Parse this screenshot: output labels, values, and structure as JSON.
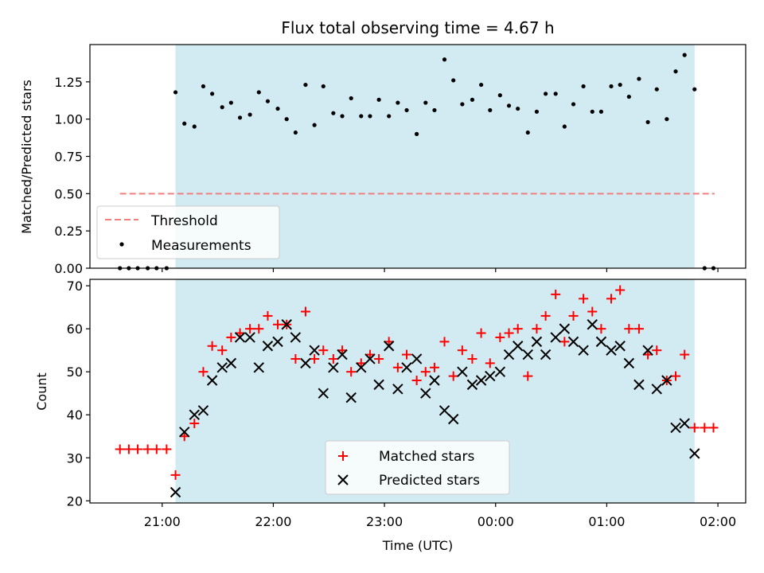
{
  "chart_data": {
    "title": "Flux total observing time = 4.67 h",
    "xlabel": "Time (UTC)",
    "x_unit": "hours after 21:00 UTC (x axis labeled with clock times)",
    "xlim": [
      -0.65,
      5.25
    ],
    "xticks": [
      {
        "value": 0,
        "label": "21:00"
      },
      {
        "value": 1,
        "label": "22:00"
      },
      {
        "value": 2,
        "label": "23:00"
      },
      {
        "value": 3,
        "label": "00:00"
      },
      {
        "value": 4,
        "label": "01:00"
      },
      {
        "value": 5,
        "label": "02:00"
      }
    ],
    "observing_window": {
      "start": 0.12,
      "end": 4.79,
      "color": "#d2eaf1"
    },
    "panels": [
      {
        "name": "ratio",
        "type": "scatter",
        "ylabel": "Matched/Predicted stars",
        "ylim": [
          0,
          1.5
        ],
        "yticks": [
          "0.00",
          "0.25",
          "0.50",
          "0.75",
          "1.00",
          "1.25"
        ],
        "threshold": {
          "name": "Threshold",
          "value": 0.5,
          "x_range": [
            -0.38,
            4.97
          ],
          "color": "#f08080"
        },
        "legend": {
          "position": "lower-left",
          "entries": [
            "Threshold",
            "Measurements"
          ]
        },
        "series": [
          {
            "name": "Measurements",
            "color": "#000000",
            "marker": "dot",
            "x": [
              -0.38,
              -0.3,
              -0.22,
              -0.13,
              -0.05,
              0.04,
              0.12,
              0.2,
              0.29,
              0.37,
              0.45,
              0.54,
              0.62,
              0.7,
              0.79,
              0.87,
              0.95,
              1.04,
              1.12,
              1.2,
              1.29,
              1.37,
              1.45,
              1.54,
              1.62,
              1.7,
              1.79,
              1.87,
              1.95,
              2.04,
              2.12,
              2.2,
              2.29,
              2.37,
              2.45,
              2.54,
              2.62,
              2.7,
              2.79,
              2.87,
              2.95,
              3.04,
              3.12,
              3.2,
              3.29,
              3.37,
              3.45,
              3.54,
              3.62,
              3.7,
              3.79,
              3.87,
              3.95,
              4.04,
              4.12,
              4.2,
              4.29,
              4.37,
              4.45,
              4.54,
              4.62,
              4.7,
              4.79,
              4.88,
              4.96
            ],
            "y": [
              0,
              0,
              0,
              0,
              0,
              0,
              1.18,
              0.97,
              0.95,
              1.22,
              1.17,
              1.08,
              1.11,
              1.01,
              1.03,
              1.18,
              1.12,
              1.07,
              1.0,
              0.91,
              1.23,
              0.96,
              1.22,
              1.04,
              1.02,
              1.14,
              1.02,
              1.02,
              1.13,
              1.02,
              1.11,
              1.06,
              0.9,
              1.11,
              1.06,
              1.4,
              1.26,
              1.1,
              1.13,
              1.23,
              1.06,
              1.16,
              1.09,
              1.07,
              0.91,
              1.05,
              1.17,
              1.17,
              0.95,
              1.1,
              1.22,
              1.05,
              1.05,
              1.22,
              1.23,
              1.15,
              1.27,
              0.98,
              1.2,
              1.0,
              1.32,
              1.43,
              1.2,
              0,
              0
            ]
          }
        ]
      },
      {
        "name": "count",
        "type": "scatter",
        "ylabel": "Count",
        "ylim": [
          19.5,
          71.5
        ],
        "yticks": [
          "20",
          "30",
          "40",
          "50",
          "60",
          "70"
        ],
        "legend": {
          "position": "lower-center",
          "entries": [
            "Matched stars",
            "Predicted stars"
          ]
        },
        "series": [
          {
            "name": "Matched stars",
            "color": "#ff0000",
            "marker": "plus",
            "x": [
              -0.38,
              -0.3,
              -0.22,
              -0.13,
              -0.05,
              0.04,
              0.12,
              0.2,
              0.29,
              0.37,
              0.45,
              0.54,
              0.62,
              0.7,
              0.79,
              0.87,
              0.95,
              1.04,
              1.12,
              1.2,
              1.29,
              1.37,
              1.45,
              1.54,
              1.62,
              1.7,
              1.79,
              1.87,
              1.95,
              2.04,
              2.12,
              2.2,
              2.29,
              2.37,
              2.45,
              2.54,
              2.62,
              2.7,
              2.79,
              2.87,
              2.95,
              3.04,
              3.12,
              3.2,
              3.29,
              3.37,
              3.45,
              3.54,
              3.62,
              3.7,
              3.79,
              3.87,
              3.95,
              4.04,
              4.12,
              4.2,
              4.29,
              4.37,
              4.45,
              4.54,
              4.62,
              4.7,
              4.79,
              4.88,
              4.96
            ],
            "y": [
              32,
              32,
              32,
              32,
              32,
              32,
              26,
              35,
              38,
              50,
              56,
              55,
              58,
              59,
              60,
              60,
              63,
              61,
              61,
              53,
              64,
              53,
              55,
              53,
              55,
              50,
              52,
              54,
              53,
              57,
              51,
              54,
              48,
              50,
              51,
              57,
              49,
              55,
              53,
              59,
              52,
              58,
              59,
              60,
              49,
              60,
              63,
              68,
              57,
              63,
              67,
              64,
              60,
              67,
              69,
              60,
              60,
              54,
              55,
              48,
              49,
              54,
              37,
              37,
              37
            ]
          },
          {
            "name": "Predicted stars",
            "color": "#000000",
            "marker": "x",
            "x": [
              0.12,
              0.2,
              0.29,
              0.37,
              0.45,
              0.54,
              0.62,
              0.7,
              0.79,
              0.87,
              0.95,
              1.04,
              1.12,
              1.2,
              1.29,
              1.37,
              1.45,
              1.54,
              1.62,
              1.7,
              1.79,
              1.87,
              1.95,
              2.04,
              2.12,
              2.2,
              2.29,
              2.37,
              2.45,
              2.54,
              2.62,
              2.7,
              2.79,
              2.87,
              2.95,
              3.04,
              3.12,
              3.2,
              3.29,
              3.37,
              3.45,
              3.54,
              3.62,
              3.7,
              3.79,
              3.87,
              3.95,
              4.04,
              4.12,
              4.2,
              4.29,
              4.37,
              4.45,
              4.54,
              4.62,
              4.7,
              4.79
            ],
            "y": [
              22,
              36,
              40,
              41,
              48,
              51,
              52,
              58,
              58,
              51,
              56,
              57,
              61,
              58,
              52,
              55,
              45,
              51,
              54,
              44,
              51,
              53,
              47,
              56,
              46,
              51,
              53,
              45,
              48,
              41,
              39,
              50,
              47,
              48,
              49,
              50,
              54,
              56,
              54,
              57,
              54,
              58,
              60,
              57,
              55,
              61,
              57,
              55,
              56,
              52,
              47,
              55,
              46,
              48,
              37,
              38,
              31
            ]
          }
        ]
      }
    ]
  }
}
